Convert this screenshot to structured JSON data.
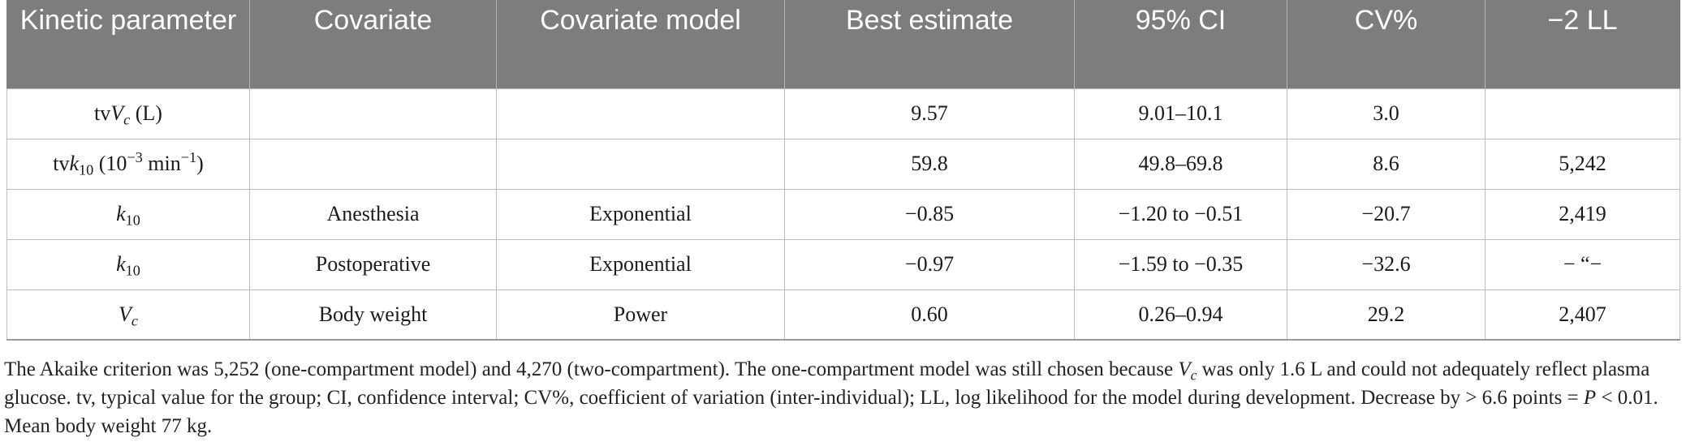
{
  "table": {
    "headers": [
      "Kinetic parameter",
      "Covariate",
      "Covariate model",
      "Best estimate",
      "95% CI",
      "CV%",
      "−2 LL"
    ],
    "rows": [
      {
        "param_prefix": "tv",
        "param_var": "V",
        "param_sub": "c",
        "param_suffix": " (L)",
        "covariate": "",
        "model": "",
        "estimate": "9.57",
        "ci": "9.01–10.1",
        "cv": "3.0",
        "ll": ""
      },
      {
        "param_prefix": "tv",
        "param_var": "k",
        "param_sub": "10",
        "param_suffix_a": " (10",
        "param_sup_a": "−3",
        "param_suffix_b": " min",
        "param_sup_b": "−1",
        "param_suffix_c": ")",
        "covariate": "",
        "model": "",
        "estimate": "59.8",
        "ci": "49.8–69.8",
        "cv": "8.6",
        "ll": "5,242"
      },
      {
        "param_var": "k",
        "param_sub": "10",
        "covariate": "Anesthesia",
        "model": "Exponential",
        "estimate": "−0.85",
        "ci": "−1.20 to −0.51",
        "cv": "−20.7",
        "ll": "2,419"
      },
      {
        "param_var": "k",
        "param_sub": "10",
        "covariate": "Postoperative",
        "model": "Exponential",
        "estimate": "−0.97",
        "ci": "−1.59 to −0.35",
        "cv": "−32.6",
        "ll": "− “−"
      },
      {
        "param_var": "V",
        "param_sub": "c",
        "covariate": "Body weight",
        "model": "Power",
        "estimate": "0.60",
        "ci": "0.26–0.94",
        "cv": "29.2",
        "ll": "2,407"
      }
    ]
  },
  "footnote": {
    "part1": "The Akaike criterion was 5,252 (one-compartment model) and 4,270 (two-compartment). The one-compartment model was still chosen because ",
    "var": "V",
    "var_sub": "c",
    "part2": " was only 1.6 L and could not adequately reflect plasma glucose. tv, typical value for the group; CI, confidence interval; CV%, coefficient of variation (inter-individual); LL, log likelihood for the model during development. Decrease by > 6.6 points = ",
    "p_var": "P",
    "part3": " < 0.01. Mean body weight 77 kg."
  }
}
